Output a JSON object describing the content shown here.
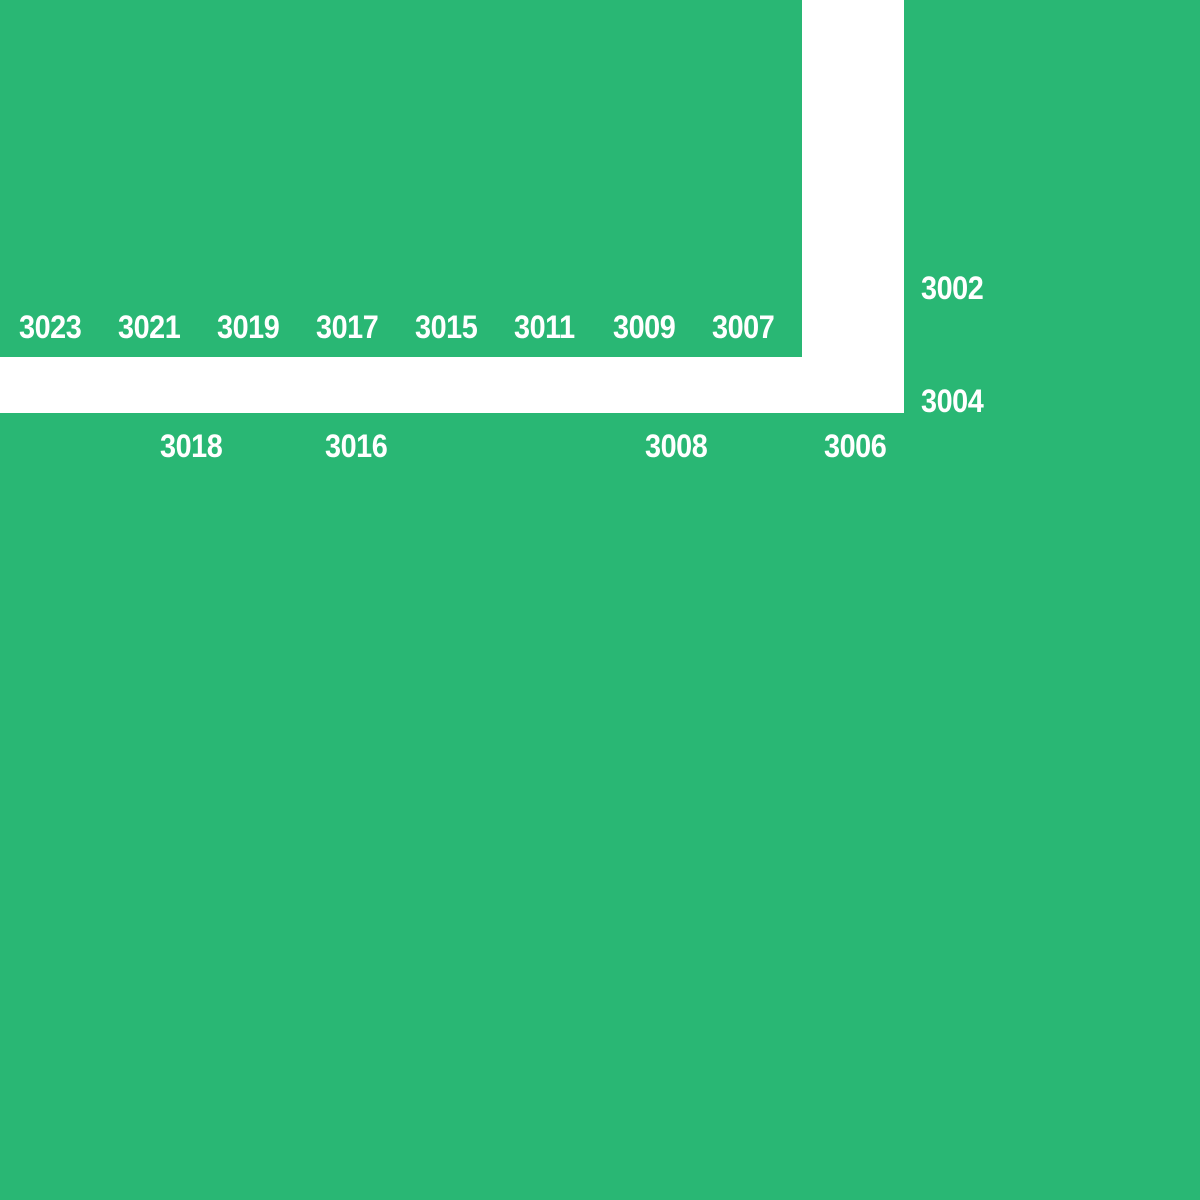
{
  "colors": {
    "block": "#29b774",
    "street": "#ffffff",
    "label": "#ffffff"
  },
  "north_block": {
    "addresses": [
      "3023",
      "3021",
      "3019",
      "3017",
      "3015",
      "3011",
      "3009",
      "3007"
    ]
  },
  "east_block": {
    "addresses": [
      "3002",
      "3004"
    ]
  },
  "south_block": {
    "addresses": [
      "3018",
      "3016",
      "3008",
      "3006"
    ]
  }
}
